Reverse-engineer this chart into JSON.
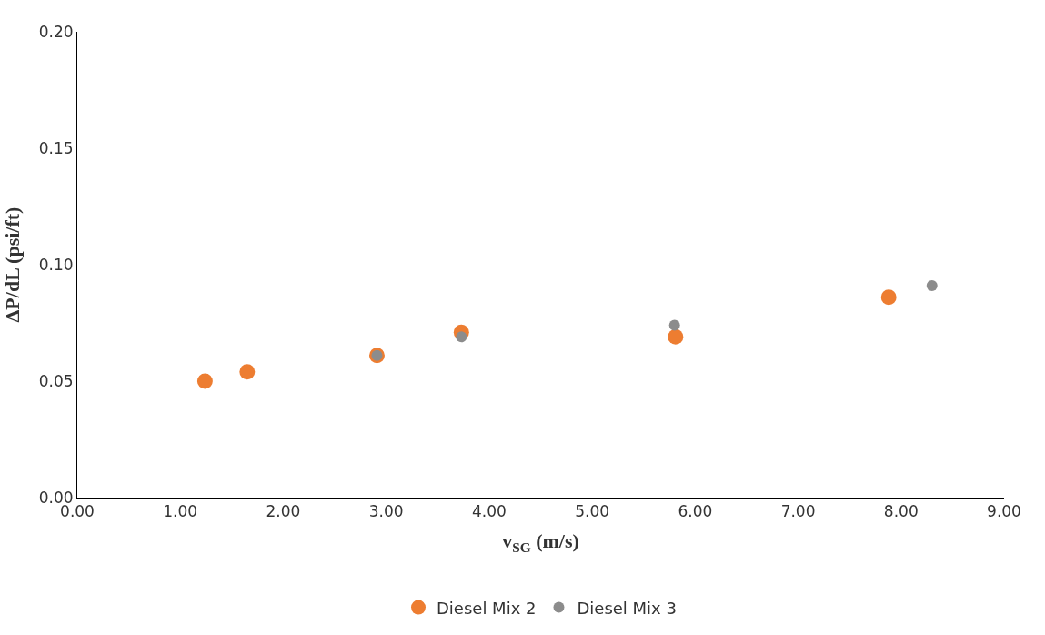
{
  "chart_data": {
    "type": "scatter",
    "xlabel": "v$_{SG}$ (m/s)",
    "ylabel": "ΔP/dL (psi/ft)",
    "series": [
      {
        "name": "Diesel Mix 2",
        "color": "#ed7d31",
        "x": [
          1.24,
          1.65,
          2.91,
          3.73,
          5.81,
          7.88
        ],
        "values": [
          0.05,
          0.054,
          0.061,
          0.071,
          0.069,
          0.086
        ]
      },
      {
        "name": "Diesel Mix 3",
        "color": "#8c8c8c",
        "x": [
          2.91,
          3.73,
          5.8,
          8.3
        ],
        "values": [
          0.061,
          0.069,
          0.074,
          0.091
        ]
      }
    ],
    "xlim": [
      0,
      9
    ],
    "xticks": [
      {
        "value": 0,
        "label": "0.00"
      },
      {
        "value": 1,
        "label": "1.00"
      },
      {
        "value": 2,
        "label": "2.00"
      },
      {
        "value": 3,
        "label": "3.00"
      },
      {
        "value": 4,
        "label": "4.00"
      },
      {
        "value": 5,
        "label": "5.00"
      },
      {
        "value": 6,
        "label": "6.00"
      },
      {
        "value": 7,
        "label": "7.00"
      },
      {
        "value": 8,
        "label": "8.00"
      },
      {
        "value": 9,
        "label": "9.00"
      }
    ],
    "ylim": [
      0,
      0.2
    ],
    "yticks": [
      {
        "value": 0,
        "label": "0.00"
      },
      {
        "value": 0.05,
        "label": "0.05"
      },
      {
        "value": 0.1,
        "label": "0.10"
      },
      {
        "value": 0.15,
        "label": "0.15"
      },
      {
        "value": 0.2,
        "label": "0.20"
      }
    ],
    "grid": false,
    "legend": "bottom",
    "marker": "circle"
  }
}
